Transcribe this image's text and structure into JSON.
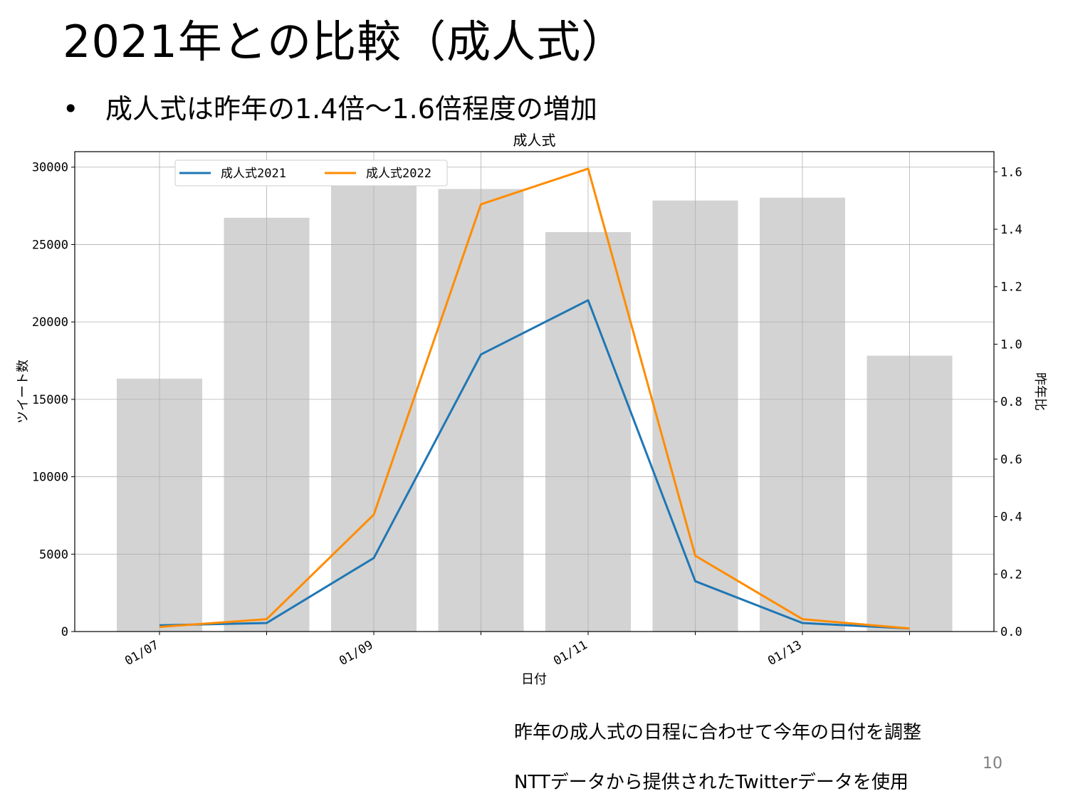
{
  "slide": {
    "title": "2021年との比較（成人式）",
    "bullet_marker": "•",
    "bullet_text": "成人式は昨年の1.4倍～1.6倍程度の増加",
    "note_schedule": "昨年の成人式の日程に合わせて今年の日付を調整",
    "note_source": "NTTデータから提供されたTwitterデータを使用",
    "page_number": "10"
  },
  "chart_data": {
    "type": "bar+line",
    "title": "成人式",
    "xlabel": "日付",
    "ylabel_left": "ツイート数",
    "ylabel_right": "昨年比",
    "x_dates": [
      "01/07",
      "01/08",
      "01/09",
      "01/10",
      "01/11",
      "01/12",
      "01/13",
      "01/14"
    ],
    "x_tick_labels": [
      "01/07",
      "01/09",
      "01/11",
      "01/13"
    ],
    "ylim_left": [
      0,
      31000
    ],
    "yticks_left": [
      "0",
      "5000",
      "10000",
      "15000",
      "20000",
      "25000",
      "30000"
    ],
    "ylim_right": [
      0,
      1.67
    ],
    "yticks_right": [
      "0.0",
      "0.2",
      "0.4",
      "0.6",
      "0.8",
      "1.0",
      "1.2",
      "1.4",
      "1.6"
    ],
    "bars": {
      "axis": "right",
      "color": "#d3d3d3",
      "values": [
        0.88,
        1.44,
        1.59,
        1.54,
        1.39,
        1.5,
        1.51,
        0.96
      ]
    },
    "series": [
      {
        "name": "成人式2021",
        "color": "#1f77b4",
        "values": [
          400,
          550,
          4750,
          17900,
          21400,
          3250,
          550,
          200
        ]
      },
      {
        "name": "成人式2022",
        "color": "#ff8c00",
        "values": [
          300,
          800,
          7550,
          27600,
          29900,
          4900,
          800,
          200
        ]
      }
    ],
    "grid": true,
    "legend_position": "upper-left"
  }
}
